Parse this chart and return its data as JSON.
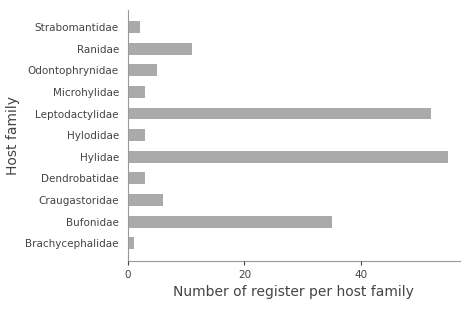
{
  "categories": [
    "Brachycephalidae",
    "Bufonidae",
    "Craugastoridae",
    "Dendrobatidae",
    "Hylidae",
    "Hylodidae",
    "Leptodactylidae",
    "Microhylidae",
    "Odontophrynidae",
    "Ranidae",
    "Strabomantidae"
  ],
  "values": [
    1,
    35,
    6,
    3,
    55,
    3,
    52,
    3,
    5,
    11,
    2
  ],
  "bar_color": "#aaaaaa",
  "xlabel": "Number of register per host family",
  "ylabel": "Host family",
  "xlim": [
    0,
    57
  ],
  "xticks": [
    0,
    20,
    40
  ],
  "bar_height": 0.55,
  "background_color": "#ffffff",
  "tick_fontsize": 7.5,
  "label_fontsize": 10,
  "spine_color": "#999999",
  "text_color": "#444444"
}
